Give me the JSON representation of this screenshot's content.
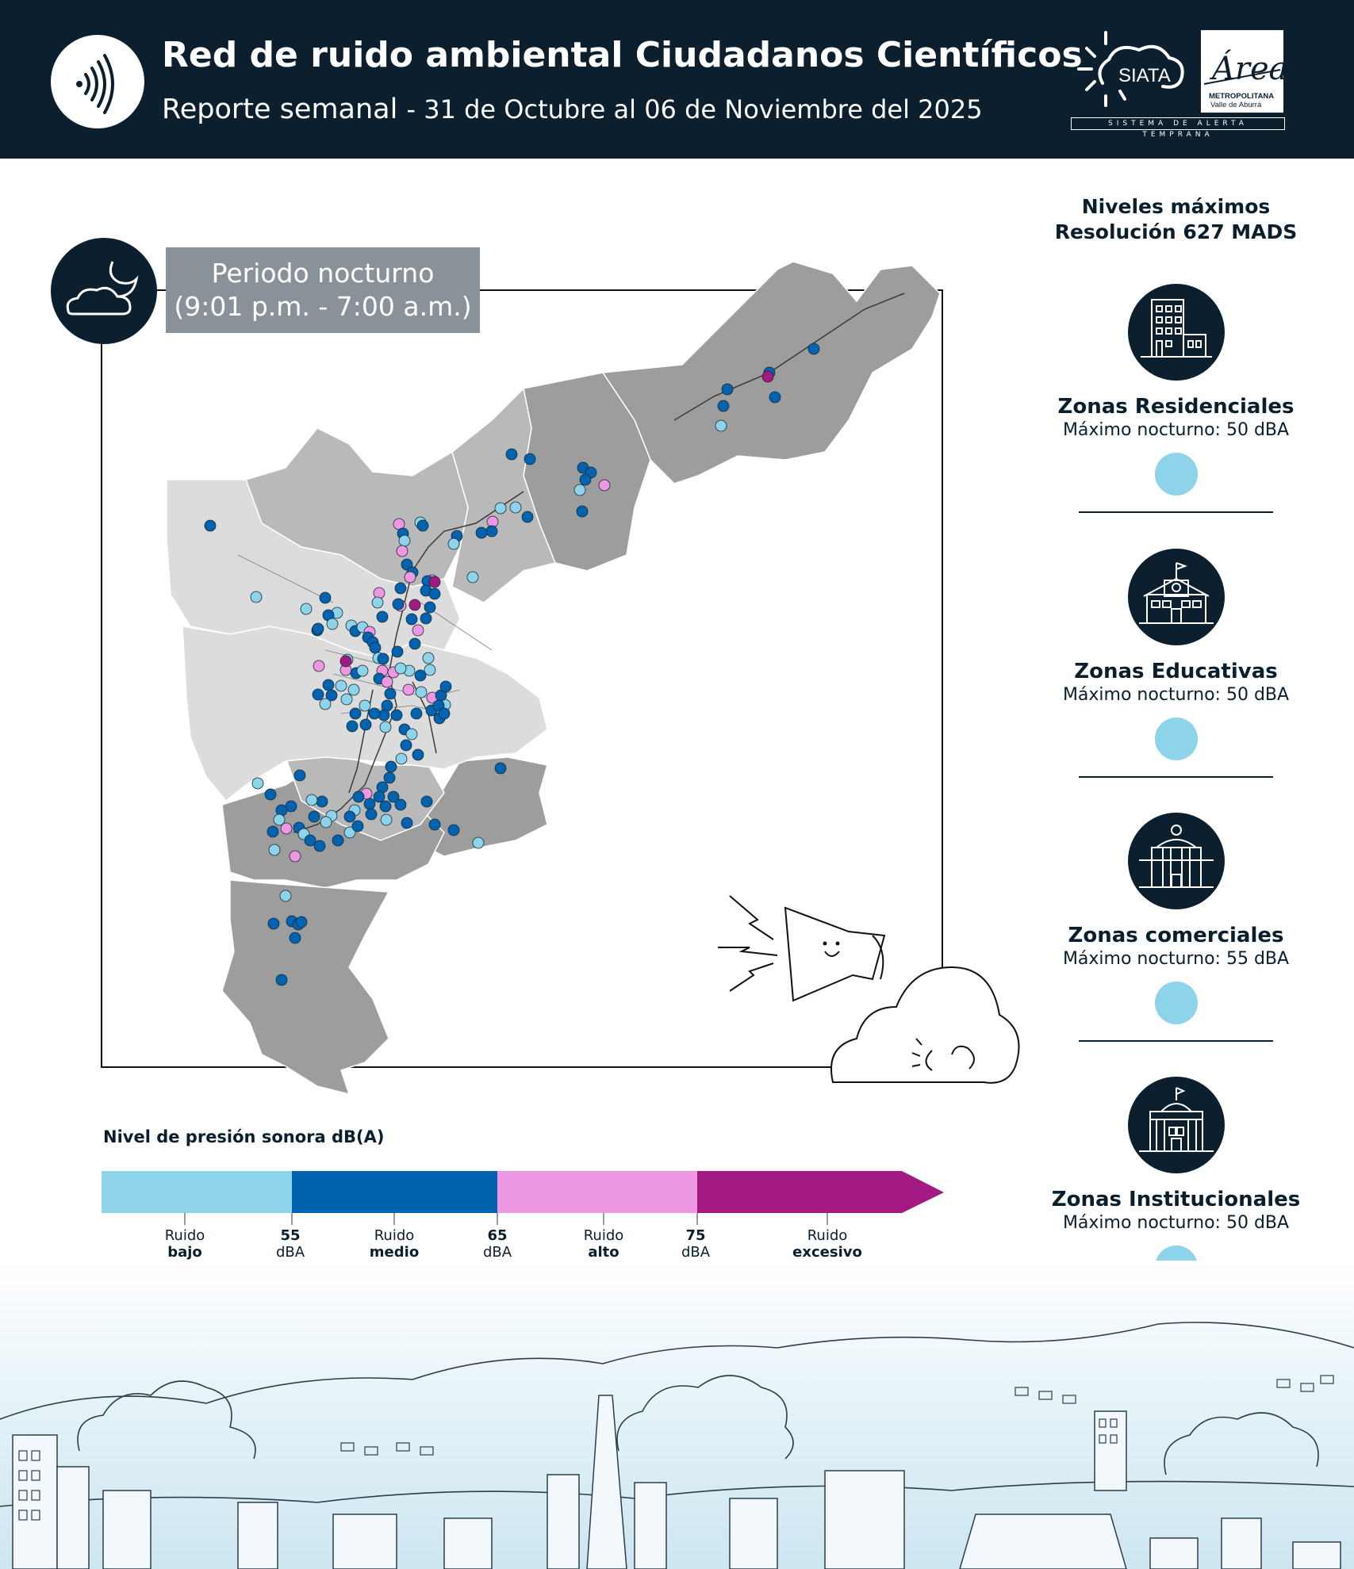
{
  "header": {
    "title": "Red de ruido ambiental Ciudadanos Científicos",
    "subtitle": "Reporte semanal",
    "date_range": "- 31 de Octubre al 06 de Noviembre del 2025",
    "logo_left": "sound-waves-icon",
    "logos": [
      {
        "name": "siata-logo",
        "text": "SIATA"
      },
      {
        "name": "area-metropolitana-logo",
        "text": "Área",
        "line1": "METROPOLITANA",
        "line2": "Valle de Aburrá"
      }
    ],
    "siata_tagline": "SISTEMA DE ALERTA TEMPRANA"
  },
  "period": {
    "icon": "moon-cloud-icon",
    "line1": "Periodo nocturno",
    "line2": "(9:01 p.m. - 7:00 a.m.)"
  },
  "sidebar": {
    "title_line1": "Niveles máximos",
    "title_line2": "Resolución 627 MADS",
    "zones": [
      {
        "icon": "residential-building-icon",
        "name": "Zonas Residenciales",
        "max": "Máximo nocturno: 50 dBA",
        "level_color": "#8dd3ea"
      },
      {
        "icon": "school-building-icon",
        "name": "Zonas Educativas",
        "max": "Máximo nocturno: 50 dBA",
        "level_color": "#8dd3ea"
      },
      {
        "icon": "commercial-building-icon",
        "name": "Zonas comerciales",
        "max": "Máximo nocturno: 55 dBA",
        "level_color": "#8dd3ea"
      },
      {
        "icon": "institutional-building-icon",
        "name": "Zonas Institucionales",
        "max": "Máximo nocturno: 50 dBA",
        "level_color": "#8dd3ea"
      }
    ]
  },
  "legend": {
    "title": "Nivel de presión sonora dB(A)",
    "categories": [
      {
        "word": "Ruido",
        "level": "bajo",
        "color": "#8dd3ea"
      },
      {
        "word": "Ruido",
        "level": "medio",
        "color": "#0063b0"
      },
      {
        "word": "Ruido",
        "level": "alto",
        "color": "#ee97e3"
      },
      {
        "word": "Ruido",
        "level": "excesivo",
        "color": "#a31a82"
      }
    ],
    "thresholds": [
      {
        "value": "55",
        "unit": "dBA"
      },
      {
        "value": "65",
        "unit": "dBA"
      },
      {
        "value": "75",
        "unit": "dBA"
      }
    ]
  },
  "colors": {
    "navy": "#0b1f2e",
    "bajo": "#8dd3ea",
    "medio": "#0063b0",
    "alto": "#ee97e3",
    "excesivo": "#a31a82"
  }
}
